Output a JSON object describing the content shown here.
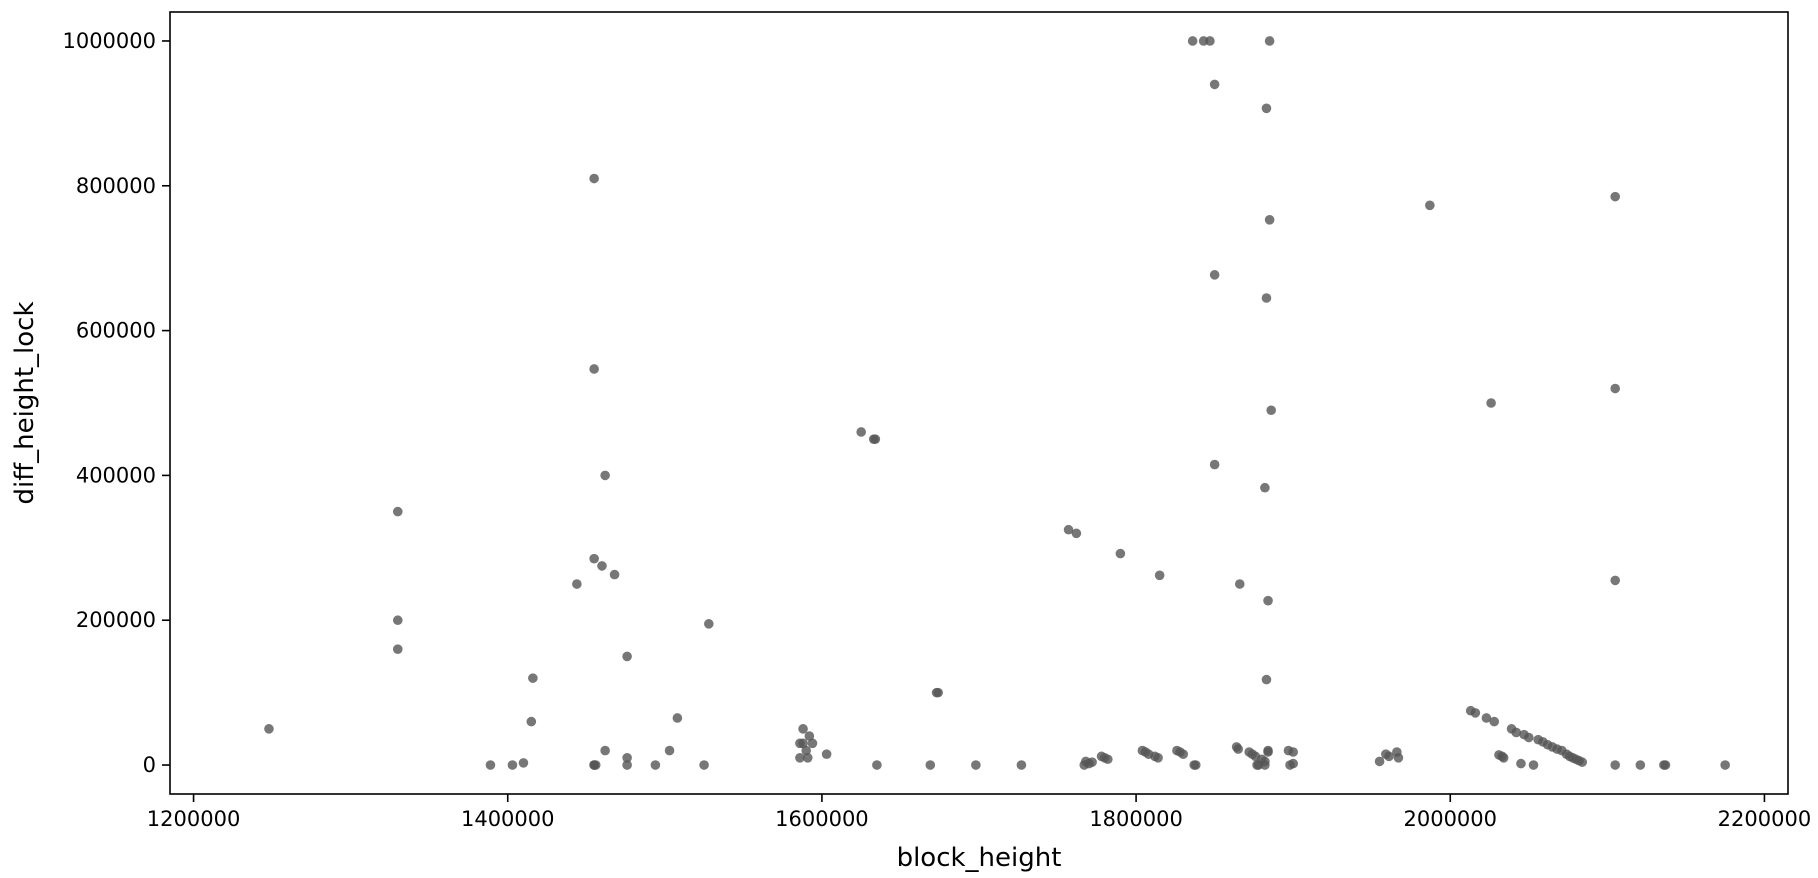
{
  "chart_data": {
    "type": "scatter",
    "title": "",
    "xlabel": "block_height",
    "ylabel": "diff_height_lock",
    "xlim": [
      1185000,
      2215000
    ],
    "ylim": [
      -40000,
      1040000
    ],
    "xticks": [
      1200000,
      1400000,
      1600000,
      1800000,
      2000000,
      2200000
    ],
    "xtick_labels": [
      "1200000",
      "1400000",
      "1600000",
      "1800000",
      "2000000",
      "2200000"
    ],
    "yticks": [
      0,
      200000,
      400000,
      600000,
      800000,
      1000000
    ],
    "ytick_labels": [
      "0",
      "200000",
      "400000",
      "600000",
      "800000",
      "1000000"
    ],
    "grid": false,
    "legend": "none",
    "marker_color": "#555555",
    "series": [
      {
        "x": [
          1248000,
          1330000,
          1330000,
          1330000,
          1389000,
          1403000,
          1410000,
          1415000,
          1416000,
          1444000,
          1455000,
          1455000,
          1455000,
          1455000,
          1455000,
          1456000,
          1460000,
          1462000,
          1462000,
          1468000,
          1476000,
          1476000,
          1476000,
          1494000,
          1503000,
          1508000,
          1525000,
          1528000,
          1586000,
          1586000,
          1588000,
          1588000,
          1590000,
          1591000,
          1592000,
          1594000,
          1603000,
          1625000,
          1633000,
          1634000,
          1635000,
          1669000,
          1673000,
          1674000,
          1698000,
          1727000,
          1757000,
          1762000,
          1767000,
          1768000,
          1770000,
          1772000,
          1778000,
          1780000,
          1782000,
          1790000,
          1804000,
          1806000,
          1808000,
          1812000,
          1814000,
          1815000,
          1826000,
          1828000,
          1830000,
          1836000,
          1837000,
          1838000,
          1843000,
          1847000,
          1850000,
          1850000,
          1850000,
          1864000,
          1865000,
          1866000,
          1872000,
          1874000,
          1876000,
          1877000,
          1878000,
          1880000,
          1882000,
          1882000,
          1882000,
          1883000,
          1883000,
          1883000,
          1884000,
          1884000,
          1884000,
          1885000,
          1885000,
          1886000,
          1897000,
          1898000,
          1900000,
          1900000,
          1955000,
          1959000,
          1961000,
          1966000,
          1967000,
          1987000,
          2013000,
          2016000,
          2023000,
          2026000,
          2028000,
          2031000,
          2033000,
          2034000,
          2039000,
          2042000,
          2045000,
          2047000,
          2050000,
          2053000,
          2056000,
          2059000,
          2062000,
          2065000,
          2068000,
          2071000,
          2074000,
          2076000,
          2078000,
          2080000,
          2082000,
          2084000,
          2105000,
          2105000,
          2105000,
          2105000,
          2121000,
          2136000,
          2137000,
          2175000
        ],
        "y": [
          50000,
          350000,
          200000,
          160000,
          0,
          0,
          3000,
          60000,
          120000,
          250000,
          810000,
          547000,
          285000,
          0,
          0,
          0,
          275000,
          400000,
          20000,
          263000,
          150000,
          10000,
          0,
          0,
          20000,
          65000,
          0,
          195000,
          30000,
          10000,
          50000,
          30000,
          20000,
          10000,
          40000,
          30000,
          15000,
          460000,
          450000,
          450000,
          0,
          0,
          100000,
          100000,
          0,
          0,
          325000,
          320000,
          0,
          5000,
          2000,
          4000,
          12000,
          10000,
          8000,
          292000,
          20000,
          18000,
          15000,
          12000,
          10000,
          262000,
          20000,
          18000,
          15000,
          1000000,
          0,
          0,
          1000000,
          1000000,
          940000,
          677000,
          415000,
          25000,
          22000,
          250000,
          18000,
          15000,
          12000,
          0,
          0,
          8000,
          5000,
          0,
          383000,
          645000,
          907000,
          118000,
          227000,
          20000,
          18000,
          1000000,
          753000,
          490000,
          20000,
          0,
          18000,
          2000,
          5000,
          15000,
          12000,
          18000,
          10000,
          773000,
          75000,
          72000,
          65000,
          500000,
          60000,
          14000,
          12000,
          10000,
          50000,
          45000,
          2000,
          42000,
          38000,
          0,
          35000,
          32000,
          28000,
          25000,
          22000,
          20000,
          15000,
          12000,
          10000,
          8000,
          6000,
          4000,
          785000,
          520000,
          255000,
          0,
          0,
          0,
          0,
          0
        ]
      }
    ]
  }
}
